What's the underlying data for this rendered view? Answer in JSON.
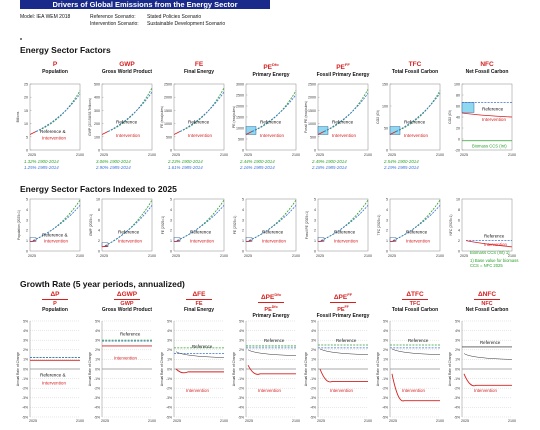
{
  "banner": {
    "title": "Drivers of Global Emissions from the Energy Sector"
  },
  "meta": {
    "model": "Model: IEA WEM 2018",
    "reference_label": "Reference Scenario:",
    "reference_value": "Stated Policies Scenario",
    "intervention_label": "Intervention Scenario:",
    "intervention_value": "Sustainable Development Scenario"
  },
  "sections": {
    "factors": "Energy Sector Factors",
    "indexed": "Energy Sector Factors Indexed to 2025",
    "growth": "Growth Rate (5 year periods, annualized)"
  },
  "labels": {
    "reference": "Reference",
    "intervention": "Intervention",
    "ref_and": "Reference &",
    "biomass": "Biomass CCS (Int)",
    "biomass_note_1": "1) Base value for biomass",
    "biomass_note_2": "CCS = NFC 2025"
  },
  "colors": {
    "reference_green": "#2ca02c",
    "reference_blue": "#3a6fd8",
    "intervention_red": "#d62020",
    "growth_ref_blue": "#3a6fd8",
    "growth_ref_green": "#2ca02c",
    "fill_cyan": "#8fd8f0",
    "banner_navy": "#1a2a8a"
  },
  "columns": [
    {
      "sym": "P",
      "sym_sup": "",
      "name": "Population",
      "d_sym": "ΔP",
      "d_sym2": "P",
      "d_sym2_sup": "",
      "axis_label": "Billions",
      "ylim": [
        0,
        25
      ],
      "yticks": [
        "0",
        "5",
        "10",
        "15",
        "20",
        "25"
      ],
      "idx_label": "Population (2025=1)",
      "idx_ylim": [
        0,
        5
      ],
      "idx_yticks": [
        "0",
        "1",
        "2",
        "3",
        "4",
        "5"
      ],
      "growth_green": "1.32%  1900-2014",
      "growth_blue": "1.25%  1985-2014"
    },
    {
      "sym": "GWP",
      "sym_sup": "",
      "name": "Gross World Product",
      "d_sym": "ΔGWP",
      "d_sym2": "GWP",
      "d_sym2_sup": "",
      "axis_label": "GWP (2015US$ Trillions)",
      "ylim": [
        0,
        500
      ],
      "yticks": [
        "0",
        "100",
        "200",
        "300",
        "400",
        "500"
      ],
      "idx_label": "GWP (2025=1)",
      "idx_ylim": [
        0,
        10
      ],
      "idx_yticks": [
        "0",
        "2",
        "4",
        "6",
        "8",
        "10"
      ],
      "growth_green": "3.06%  1900-2014",
      "growth_blue": "2.90%  1985-2014"
    },
    {
      "sym": "FE",
      "sym_sup": "",
      "name": "Final Energy",
      "d_sym": "ΔFE",
      "d_sym2": "FE",
      "d_sym2_sup": "",
      "axis_label": "FE (exajoules)",
      "ylim": [
        0,
        2500
      ],
      "yticks": [
        "0",
        "500",
        "1000",
        "1500",
        "2000",
        "2500"
      ],
      "idx_label": "FE (2025=1)",
      "idx_ylim": [
        0,
        5
      ],
      "idx_yticks": [
        "0",
        "1",
        "2",
        "3",
        "4",
        "5"
      ],
      "growth_green": "2.23%  1900-2014",
      "growth_blue": "1.61%  1985-2014"
    },
    {
      "sym": "PE",
      "sym_sup": "Dfo",
      "name": "Primary Energy",
      "d_sym": "ΔPE",
      "d_sym2": "PE",
      "d_sym2_sup": "Dfo",
      "axis_label": "PE (exajoules)",
      "ylim": [
        0,
        3000
      ],
      "yticks": [
        "0",
        "500",
        "1000",
        "1500",
        "2000",
        "2500",
        "3000"
      ],
      "idx_label": "PE (2025=1)",
      "idx_ylim": [
        0,
        5
      ],
      "idx_yticks": [
        "0",
        "1",
        "2",
        "3",
        "4",
        "5"
      ],
      "growth_green": "2.44%  1900-2014",
      "growth_blue": "2.16%  1985-2014"
    },
    {
      "sym": "PE",
      "sym_sup": "FF",
      "name": "Fossil Primary Energy",
      "d_sym": "ΔPE",
      "d_sym2": "PE",
      "d_sym2_sup": "FF",
      "axis_label": "Fossil PE (exajoules)",
      "ylim": [
        0,
        2500
      ],
      "yticks": [
        "0",
        "500",
        "1000",
        "1500",
        "2000",
        "2500"
      ],
      "idx_label": "Fossil PE (2025=1)",
      "idx_ylim": [
        0,
        5
      ],
      "idx_yticks": [
        "0",
        "1",
        "2",
        "3",
        "4",
        "5"
      ],
      "growth_green": "2.49%  1900-2014",
      "growth_blue": "2.18%  1985-2014"
    },
    {
      "sym": "TFC",
      "sym_sup": "",
      "name": "Total Fossil Carbon",
      "d_sym": "ΔTFC",
      "d_sym2": "TFC",
      "d_sym2_sup": "",
      "axis_label": "CO2 (Gt)",
      "ylim": [
        0,
        150
      ],
      "yticks": [
        "0",
        "50",
        "100",
        "150"
      ],
      "idx_label": "TFC (2025=1)",
      "idx_ylim": [
        0,
        5
      ],
      "idx_yticks": [
        "0",
        "1",
        "2",
        "3",
        "4",
        "5"
      ],
      "growth_green": "2.54%  1900-2014",
      "growth_blue": "2.19%  1985-2014"
    },
    {
      "sym": "NFC",
      "sym_sup": "",
      "name": "Net Fossil Carbon",
      "d_sym": "ΔNFC",
      "d_sym2": "NFC",
      "d_sym2_sup": "",
      "axis_label": "CO2 (Gt)",
      "ylim": [
        -20,
        100
      ],
      "yticks": [
        "-20",
        "0",
        "20",
        "40",
        "60",
        "80",
        "100"
      ],
      "idx_label": "NFC (2025=1)",
      "idx_ylim": [
        0,
        10
      ],
      "idx_yticks": [
        "0",
        "2",
        "4",
        "6",
        "8",
        "10"
      ],
      "growth_green": "",
      "growth_blue": ""
    }
  ],
  "axes": {
    "x_start": "2025",
    "x_end": "2100",
    "growth_yticks": [
      "5%",
      "4%",
      "3%",
      "2%",
      "1%",
      "0%",
      "-1%",
      "-2%",
      "-3%",
      "-4%",
      "-5%"
    ],
    "growth_ylabel": "Annual Rate of Change"
  },
  "chart_data": [
    {
      "type": "line",
      "title": "Population",
      "x": [
        2025,
        2050,
        2075,
        2100
      ],
      "series": [
        {
          "name": "Reference",
          "values": [
            8,
            11,
            15,
            22
          ]
        },
        {
          "name": "Intervention",
          "values": [
            8,
            10.5,
            14,
            20
          ]
        }
      ],
      "ylim": [
        0,
        25
      ],
      "xlabel": "",
      "ylabel": "Billions"
    },
    {
      "type": "line",
      "title": "Gross World Product",
      "x": [
        2025,
        2050,
        2075,
        2100
      ],
      "series": [
        {
          "name": "Reference",
          "values": [
            130,
            210,
            330,
            480
          ]
        },
        {
          "name": "Intervention",
          "values": [
            130,
            200,
            310,
            440
          ]
        }
      ],
      "ylim": [
        0,
        500
      ],
      "xlabel": "",
      "ylabel": "GWP (2015US$ Trillions)"
    },
    {
      "type": "line",
      "title": "Growth Rate (5 year periods, annualized)",
      "x": [
        2025,
        2050,
        2075,
        2100
      ],
      "series": [
        {
          "name": "Reference",
          "values": [
            1.1,
            1.1,
            1.1,
            1.1
          ]
        },
        {
          "name": "Intervention",
          "values": [
            0.9,
            0.9,
            0.9,
            0.9
          ]
        }
      ],
      "ylim": [
        -5,
        5
      ],
      "xlabel": "",
      "ylabel": "Annual Rate of Change"
    }
  ]
}
